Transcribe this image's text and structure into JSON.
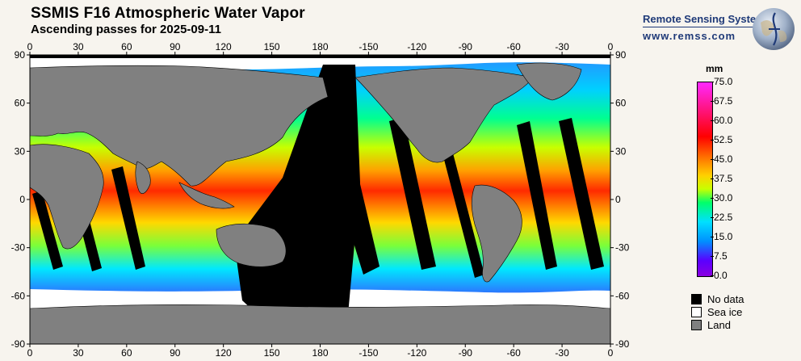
{
  "header": {
    "title": "SSMIS F16 Atmospheric Water Vapor",
    "subtitle": "Ascending passes for 2025-09-11"
  },
  "brand": {
    "name": "Remote Sensing Systems",
    "url": "www.remss.com"
  },
  "map": {
    "lon_ticks_bottom": [
      "0",
      "30",
      "60",
      "90",
      "120",
      "150",
      "180",
      "-150",
      "-120",
      "-90",
      "-60",
      "-30",
      "0"
    ],
    "lon_ticks_top": [
      "0",
      "30",
      "60",
      "90",
      "120",
      "150",
      "180",
      "-150",
      "-120",
      "-90",
      "-60",
      "-30",
      "0"
    ],
    "lat_ticks": [
      "90",
      "60",
      "30",
      "0",
      "-30",
      "-60",
      "-90"
    ],
    "colors": {
      "land": "#808080",
      "nodata": "#000000",
      "seaice": "#ffffff"
    }
  },
  "colorbar": {
    "unit": "mm",
    "ticks": [
      "75.0",
      "67.5",
      "60.0",
      "52.5",
      "45.0",
      "37.5",
      "30.0",
      "22.5",
      "15.0",
      "7.5",
      "0.0"
    ],
    "min": 0.0,
    "max": 75.0
  },
  "legend": {
    "items": [
      {
        "label": "No data",
        "color": "#000000"
      },
      {
        "label": "Sea ice",
        "color": "#ffffff"
      },
      {
        "label": "Land",
        "color": "#808080"
      }
    ]
  }
}
